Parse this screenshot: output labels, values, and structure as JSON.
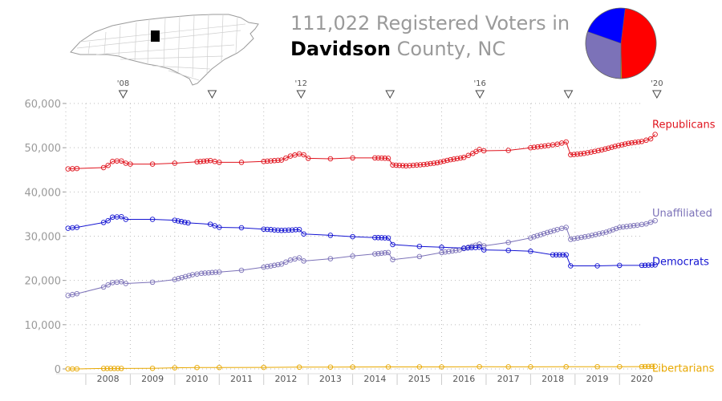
{
  "header": {
    "title_line1": "111,022 Registered Voters in",
    "county": "Davidson",
    "county_rest": " County, NC"
  },
  "colors": {
    "republicans": "#e0141e",
    "democrats": "#1414d2",
    "unaffiliated": "#7c72b8",
    "libertarians": "#e8a800",
    "axis": "#9a9a9a",
    "grid": "#bbbbbb"
  },
  "pie": {
    "slices": [
      {
        "name": "Republicans",
        "value": 53000,
        "color": "#ff0000"
      },
      {
        "name": "Libertarians",
        "value": 500,
        "color": "#e8a800"
      },
      {
        "name": "Unaffiliated",
        "value": 33600,
        "color": "#7c72b8"
      },
      {
        "name": "Democrats",
        "value": 23900,
        "color": "#0000ff"
      }
    ]
  },
  "chart_data": {
    "type": "line",
    "title": "111,022 Registered Voters in Davidson County, NC",
    "ylim": [
      0,
      60000
    ],
    "xlim": [
      2007.55,
      2020.5
    ],
    "y_ticks": [
      0,
      10000,
      20000,
      30000,
      40000,
      50000,
      60000
    ],
    "y_tick_labels": [
      "0",
      "10,000",
      "20,000",
      "30,000",
      "40,000",
      "50,000",
      "60,000"
    ],
    "x_tick_labels": [
      "2008",
      "2009",
      "2010",
      "2011",
      "2012",
      "2013",
      "2014",
      "2015",
      "2016",
      "2017",
      "2018",
      "2019",
      "2020"
    ],
    "elections": [
      {
        "x": 2008.84,
        "label": "'08"
      },
      {
        "x": 2010.84,
        "label": ""
      },
      {
        "x": 2012.84,
        "label": "'12"
      },
      {
        "x": 2014.84,
        "label": ""
      },
      {
        "x": 2016.86,
        "label": "'16"
      },
      {
        "x": 2018.85,
        "label": ""
      },
      {
        "x": 2020.84,
        "label": "'20"
      }
    ],
    "grid": true,
    "legend": "right",
    "series": [
      {
        "name": "Republicans",
        "color": "#e0141e",
        "points": [
          [
            2007.6,
            45200
          ],
          [
            2007.8,
            45300
          ],
          [
            2008.4,
            45500
          ],
          [
            2008.5,
            46000
          ],
          [
            2008.6,
            46900
          ],
          [
            2008.7,
            47000
          ],
          [
            2008.8,
            47000
          ],
          [
            2008.9,
            46500
          ],
          [
            2009.0,
            46300
          ],
          [
            2009.5,
            46300
          ],
          [
            2010.0,
            46500
          ],
          [
            2010.5,
            46800
          ],
          [
            2010.8,
            47100
          ],
          [
            2011.0,
            46700
          ],
          [
            2011.5,
            46700
          ],
          [
            2012.0,
            46900
          ],
          [
            2012.4,
            47200
          ],
          [
            2012.6,
            48100
          ],
          [
            2012.8,
            48600
          ],
          [
            2012.9,
            48400
          ],
          [
            2013.0,
            47600
          ],
          [
            2013.5,
            47500
          ],
          [
            2014.0,
            47700
          ],
          [
            2014.5,
            47700
          ],
          [
            2014.8,
            47600
          ],
          [
            2014.9,
            46100
          ],
          [
            2015.2,
            45900
          ],
          [
            2015.6,
            46200
          ],
          [
            2015.9,
            46600
          ],
          [
            2016.2,
            47300
          ],
          [
            2016.5,
            47800
          ],
          [
            2016.7,
            48700
          ],
          [
            2016.85,
            49600
          ],
          [
            2016.95,
            49300
          ],
          [
            2017.5,
            49400
          ],
          [
            2018.0,
            50000
          ],
          [
            2018.4,
            50500
          ],
          [
            2018.6,
            50800
          ],
          [
            2018.8,
            51300
          ],
          [
            2018.9,
            48400
          ],
          [
            2019.2,
            48700
          ],
          [
            2019.6,
            49500
          ],
          [
            2019.9,
            50300
          ],
          [
            2020.2,
            51000
          ],
          [
            2020.5,
            51400
          ],
          [
            2020.7,
            52000
          ],
          [
            2020.8,
            53000
          ]
        ]
      },
      {
        "name": "Unaffiliated",
        "color": "#7c72b8",
        "points": [
          [
            2007.6,
            16600
          ],
          [
            2007.8,
            17000
          ],
          [
            2008.4,
            18500
          ],
          [
            2008.6,
            19500
          ],
          [
            2008.8,
            19700
          ],
          [
            2008.9,
            19300
          ],
          [
            2009.5,
            19600
          ],
          [
            2010.0,
            20200
          ],
          [
            2010.4,
            21300
          ],
          [
            2010.6,
            21600
          ],
          [
            2011.0,
            21900
          ],
          [
            2011.5,
            22300
          ],
          [
            2012.0,
            23000
          ],
          [
            2012.4,
            23700
          ],
          [
            2012.6,
            24600
          ],
          [
            2012.8,
            25100
          ],
          [
            2012.9,
            24400
          ],
          [
            2013.5,
            24900
          ],
          [
            2014.0,
            25500
          ],
          [
            2014.5,
            26000
          ],
          [
            2014.8,
            26300
          ],
          [
            2014.9,
            24700
          ],
          [
            2015.5,
            25400
          ],
          [
            2016.0,
            26300
          ],
          [
            2016.4,
            26900
          ],
          [
            2016.6,
            27500
          ],
          [
            2016.85,
            28200
          ],
          [
            2016.95,
            27800
          ],
          [
            2017.5,
            28600
          ],
          [
            2018.0,
            29600
          ],
          [
            2018.3,
            30600
          ],
          [
            2018.6,
            31500
          ],
          [
            2018.8,
            32000
          ],
          [
            2018.9,
            29300
          ],
          [
            2019.3,
            30000
          ],
          [
            2019.7,
            30900
          ],
          [
            2020.0,
            32000
          ],
          [
            2020.4,
            32500
          ],
          [
            2020.6,
            32800
          ],
          [
            2020.8,
            33500
          ]
        ]
      },
      {
        "name": "Democrats",
        "color": "#1414d2",
        "points": [
          [
            2007.6,
            31800
          ],
          [
            2007.8,
            32000
          ],
          [
            2008.4,
            33100
          ],
          [
            2008.5,
            33500
          ],
          [
            2008.6,
            34300
          ],
          [
            2008.8,
            34400
          ],
          [
            2008.9,
            33800
          ],
          [
            2009.5,
            33800
          ],
          [
            2010.0,
            33600
          ],
          [
            2010.3,
            33000
          ],
          [
            2010.8,
            32700
          ],
          [
            2011.0,
            32000
          ],
          [
            2011.5,
            31900
          ],
          [
            2012.0,
            31600
          ],
          [
            2012.4,
            31300
          ],
          [
            2012.8,
            31500
          ],
          [
            2012.9,
            30500
          ],
          [
            2013.5,
            30200
          ],
          [
            2014.0,
            29900
          ],
          [
            2014.5,
            29700
          ],
          [
            2014.8,
            29600
          ],
          [
            2014.9,
            28100
          ],
          [
            2015.5,
            27700
          ],
          [
            2016.0,
            27500
          ],
          [
            2016.5,
            27300
          ],
          [
            2016.85,
            27500
          ],
          [
            2016.95,
            26900
          ],
          [
            2017.5,
            26800
          ],
          [
            2018.0,
            26600
          ],
          [
            2018.5,
            25800
          ],
          [
            2018.8,
            25800
          ],
          [
            2018.9,
            23300
          ],
          [
            2019.5,
            23300
          ],
          [
            2020.0,
            23400
          ],
          [
            2020.5,
            23400
          ],
          [
            2020.8,
            23500
          ]
        ]
      },
      {
        "name": "Libertarians",
        "color": "#e8a800",
        "points": [
          [
            2007.6,
            0
          ],
          [
            2007.8,
            0
          ],
          [
            2008.4,
            100
          ],
          [
            2008.8,
            100
          ],
          [
            2009.5,
            150
          ],
          [
            2010.0,
            250
          ],
          [
            2010.5,
            320
          ],
          [
            2011.0,
            330
          ],
          [
            2012.0,
            350
          ],
          [
            2012.8,
            400
          ],
          [
            2013.5,
            420
          ],
          [
            2014.0,
            440
          ],
          [
            2014.8,
            460
          ],
          [
            2015.5,
            450
          ],
          [
            2016.0,
            460
          ],
          [
            2016.85,
            500
          ],
          [
            2017.5,
            480
          ],
          [
            2018.0,
            480
          ],
          [
            2018.8,
            490
          ],
          [
            2019.5,
            500
          ],
          [
            2020.0,
            510
          ],
          [
            2020.5,
            520
          ],
          [
            2020.8,
            600
          ]
        ]
      }
    ]
  }
}
